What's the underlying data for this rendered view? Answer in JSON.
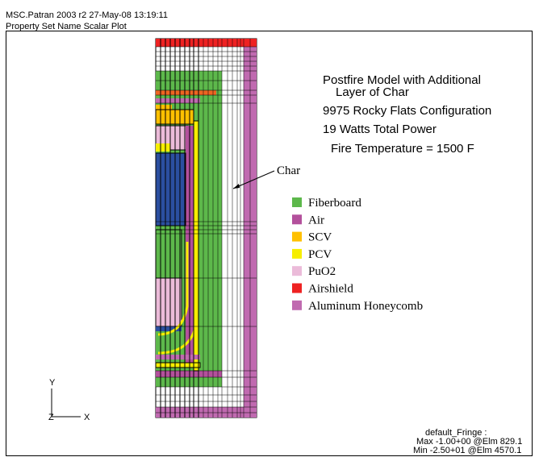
{
  "header": {
    "line1": "MSC.Patran 2003 r2 27-May-08 13:19:11",
    "line2": "Property Set Name Scalar Plot"
  },
  "title": {
    "lines": [
      "Postfire Model with Additional",
      "Layer of Char",
      "9975 Rocky Flats Configuration",
      "19 Watts Total Power",
      "Fire Temperature = 1500 F"
    ]
  },
  "annotation": "Char",
  "legend": [
    {
      "label": "Fiberboard",
      "color": "#5db84b"
    },
    {
      "label": "Air",
      "color": "#b3509c"
    },
    {
      "label": "SCV",
      "color": "#ffc000"
    },
    {
      "label": "PCV",
      "color": "#f6ee00"
    },
    {
      "label": "PuO2",
      "color": "#ebbbd9"
    },
    {
      "label": "Airshield",
      "color": "#ee2222"
    },
    {
      "label": "Aluminum Honeycomb",
      "color": "#c06ab0"
    }
  ],
  "axes": {
    "y": "Y",
    "z": "Z",
    "x": "X"
  },
  "footer": {
    "line1": "default_Fringe :",
    "line2": "Max -1.00+00 @Elm 829.1",
    "line3": "Min -2.50+01 @Elm 4570.1"
  }
}
